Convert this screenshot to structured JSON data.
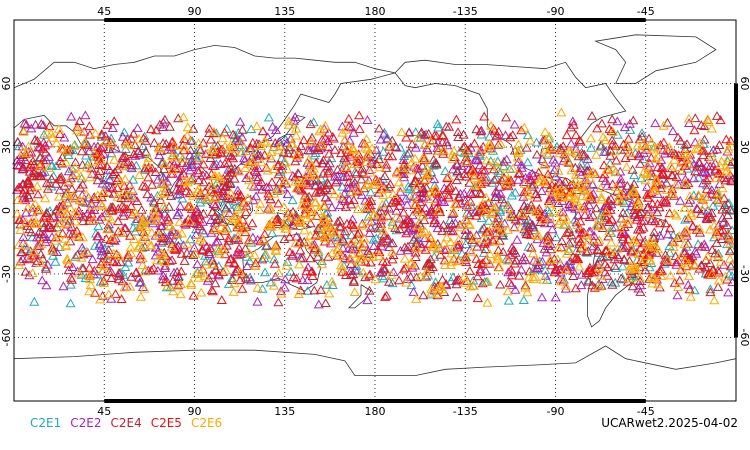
{
  "chart_data": {
    "type": "scatter",
    "projection": "cylindrical-equidistant",
    "center_longitude": 180,
    "x_ticks": [
      "45",
      "90",
      "135",
      "180",
      "-135",
      "-90",
      "-45"
    ],
    "x_tick_values": [
      45,
      90,
      135,
      180,
      225,
      270,
      315
    ],
    "y_ticks": [
      "60",
      "30",
      "0",
      "-30",
      "-60"
    ],
    "y_tick_values": [
      60,
      30,
      0,
      -30,
      -60
    ],
    "xlim": [
      0,
      360
    ],
    "ylim": [
      -90,
      90
    ],
    "grid": true,
    "legend_position": "bottom-left",
    "marker": "open-triangle",
    "latitude_band": [
      -45,
      47
    ],
    "series": [
      {
        "name": "C2E1",
        "color": "#22aabb",
        "count": 520
      },
      {
        "name": "C2E2",
        "color": "#aa22bb",
        "count": 720
      },
      {
        "name": "C2E4",
        "color": "#bb2233",
        "count": 720
      },
      {
        "name": "C2E5",
        "color": "#ee1111",
        "count": 720
      },
      {
        "name": "C2E6",
        "color": "#ffaa00",
        "count": 800
      }
    ]
  },
  "credit": "UCARwet2.2025-04-02"
}
